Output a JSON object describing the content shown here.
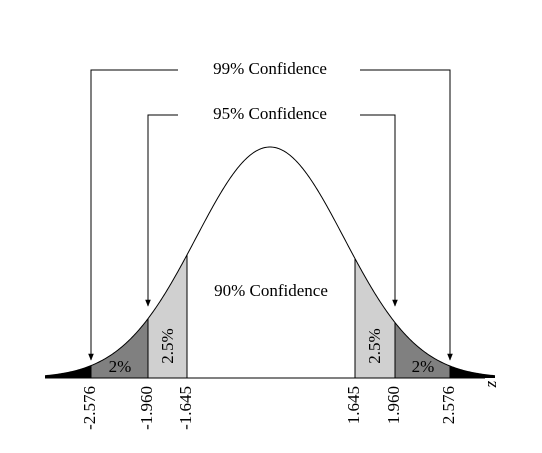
{
  "labels": {
    "ci99": "99% Confidence",
    "ci95": "95% Confidence",
    "ci90": "90% Confidence"
  },
  "regions": [
    "2%",
    "2.5%",
    "2.5%",
    "2%"
  ],
  "axis_label": "z",
  "ticks": [
    "-2.576",
    "-1.960",
    "-1.645",
    "1.645",
    "1.960",
    "2.576"
  ]
}
